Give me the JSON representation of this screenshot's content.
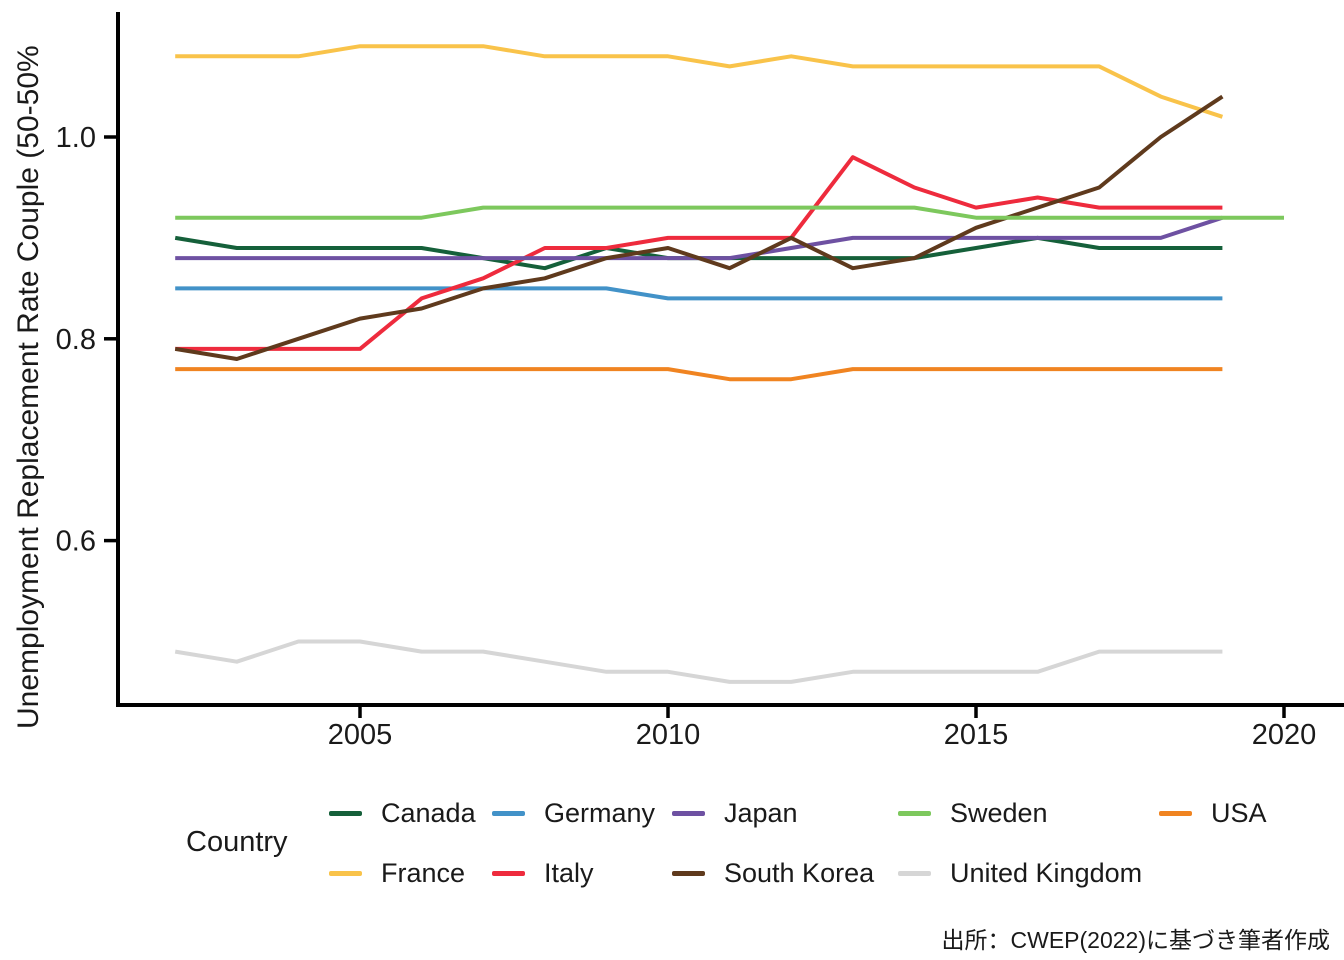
{
  "chart_data": {
    "type": "line",
    "title": "",
    "xlabel": "",
    "ylabel": "Unemployment Replacement Rate Couple (50-50%",
    "x_ticks": [
      2005,
      2010,
      2015,
      2020
    ],
    "y_ticks": [
      1.0,
      0.8,
      0.6
    ],
    "y_tick_labels": [
      "1.0",
      "0.8",
      "0.6"
    ],
    "x_range": [
      2002,
      2020
    ],
    "y_range_visible": [
      0.43,
      1.11
    ],
    "grid": "off",
    "legend_position": "bottom",
    "legend_title": "Country",
    "legend_rows": [
      [
        "Canada",
        "Germany",
        "Japan",
        "Sweden",
        "USA"
      ],
      [
        "France",
        "Italy",
        "South Korea",
        "United Kingdom"
      ]
    ],
    "years_start": 2002,
    "series": [
      {
        "name": "Canada",
        "color": "#15603a",
        "values": [
          0.9,
          0.89,
          0.89,
          0.89,
          0.89,
          0.88,
          0.87,
          0.89,
          0.88,
          0.88,
          0.88,
          0.88,
          0.88,
          0.89,
          0.9,
          0.89,
          0.89,
          0.89
        ]
      },
      {
        "name": "France",
        "color": "#f9c34a",
        "values": [
          1.08,
          1.08,
          1.08,
          1.09,
          1.09,
          1.09,
          1.08,
          1.08,
          1.08,
          1.07,
          1.08,
          1.07,
          1.07,
          1.07,
          1.07,
          1.07,
          1.04,
          1.02
        ]
      },
      {
        "name": "Germany",
        "color": "#4292c8",
        "values": [
          0.85,
          0.85,
          0.85,
          0.85,
          0.85,
          0.85,
          0.85,
          0.85,
          0.84,
          0.84,
          0.84,
          0.84,
          0.84,
          0.84,
          0.84,
          0.84,
          0.84,
          0.84
        ]
      },
      {
        "name": "Italy",
        "color": "#ee2b3d",
        "values": [
          0.79,
          0.79,
          0.79,
          0.79,
          0.84,
          0.86,
          0.89,
          0.89,
          0.9,
          0.9,
          0.9,
          0.98,
          0.95,
          0.93,
          0.94,
          0.93,
          0.93,
          0.93
        ]
      },
      {
        "name": "Japan",
        "color": "#6e51a2",
        "values": [
          0.88,
          0.88,
          0.88,
          0.88,
          0.88,
          0.88,
          0.88,
          0.88,
          0.88,
          0.88,
          0.89,
          0.9,
          0.9,
          0.9,
          0.9,
          0.9,
          0.9,
          0.92
        ]
      },
      {
        "name": "South Korea",
        "color": "#5f3a1d",
        "values": [
          0.79,
          0.78,
          0.8,
          0.82,
          0.83,
          0.85,
          0.86,
          0.88,
          0.89,
          0.87,
          0.9,
          0.87,
          0.88,
          0.91,
          0.93,
          0.95,
          1.0,
          1.04
        ]
      },
      {
        "name": "Sweden",
        "color": "#7dc85d",
        "values": [
          0.92,
          0.92,
          0.92,
          0.92,
          0.92,
          0.93,
          0.93,
          0.93,
          0.93,
          0.93,
          0.93,
          0.93,
          0.93,
          0.92,
          0.92,
          0.92,
          0.92,
          0.92,
          0.92
        ]
      },
      {
        "name": "United Kingdom",
        "color": "#d6d6d6",
        "values": [
          0.49,
          0.48,
          0.5,
          0.5,
          0.49,
          0.49,
          0.48,
          0.47,
          0.47,
          0.46,
          0.46,
          0.47,
          0.47,
          0.47,
          0.47,
          0.49,
          0.49,
          0.49
        ]
      },
      {
        "name": "USA",
        "color": "#f08421",
        "values": [
          0.77,
          0.77,
          0.77,
          0.77,
          0.77,
          0.77,
          0.77,
          0.77,
          0.77,
          0.76,
          0.76,
          0.77,
          0.77,
          0.77,
          0.77,
          0.77,
          0.77,
          0.77
        ]
      }
    ],
    "source_note": "出所：CWEP(2022)に基づき筆者作成"
  }
}
